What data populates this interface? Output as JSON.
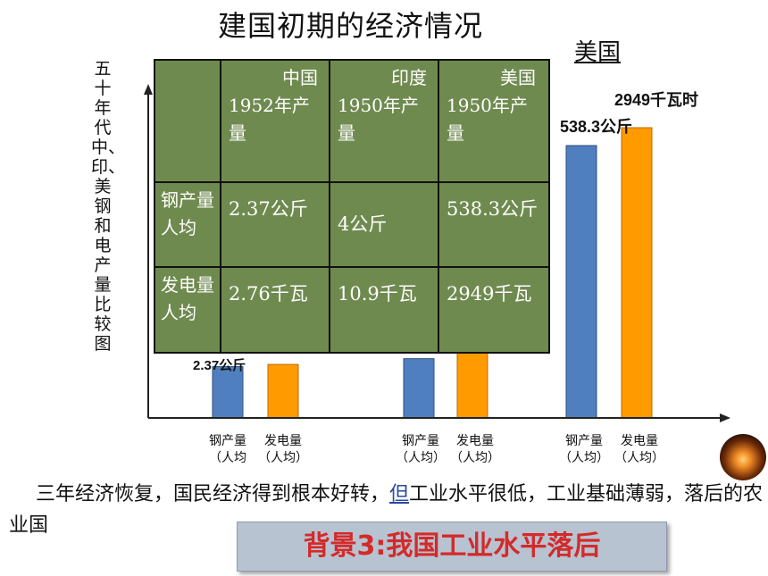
{
  "title": "建国初期的经济情况",
  "us_heading": "美国",
  "vertical_label": "五十年代中、印、美钢和电产量比较图",
  "table": {
    "header": [
      "",
      "中国1952年产量",
      "印度1950年产量",
      "美国1950年产量"
    ],
    "rows": [
      {
        "label": "钢产量人均",
        "cells": [
          "2.37公斤",
          "4公斤",
          "538.3公斤"
        ]
      },
      {
        "label": "发电量人均",
        "cells": [
          "2.76千瓦",
          "10.9千瓦",
          "2949千瓦"
        ]
      }
    ]
  },
  "chart_data": {
    "type": "bar",
    "groups": [
      {
        "name": "中国",
        "steel": 2.37,
        "electricity": 2.76
      },
      {
        "name": "印度",
        "steel": 4,
        "electricity": 10.9
      },
      {
        "name": "美国",
        "steel": 538.3,
        "electricity": 2949
      }
    ],
    "category_labels": [
      {
        "steel": [
          "钢产量",
          "（人均"
        ],
        "electricity": [
          "发电量",
          "（人均）"
        ]
      },
      {
        "steel": [
          "钢产量",
          "（人均）"
        ],
        "electricity": [
          "发电量",
          "（人均）"
        ]
      },
      {
        "steel": [
          "钢产量",
          "（人均）"
        ],
        "electricity": [
          "发电量",
          "（人均）"
        ]
      }
    ],
    "visible_value_labels": [
      {
        "group": 0,
        "series": "steel",
        "text": "2.37公斤"
      },
      {
        "group": 2,
        "series": "steel",
        "text": "538.3公斤"
      },
      {
        "group": 2,
        "series": "electricity",
        "text": "2949千瓦时"
      }
    ],
    "series_colors": {
      "steel": "#4f7fbf",
      "electricity": "#ff9a00"
    },
    "grid": false
  },
  "paragraph": {
    "before": "三年经济恢复，国民经济得到根本好转，",
    "link": "但",
    "after": "工业水平很低，工业基础薄弱，落后的农业国"
  },
  "banner": "背景3:我国工业水平落后"
}
